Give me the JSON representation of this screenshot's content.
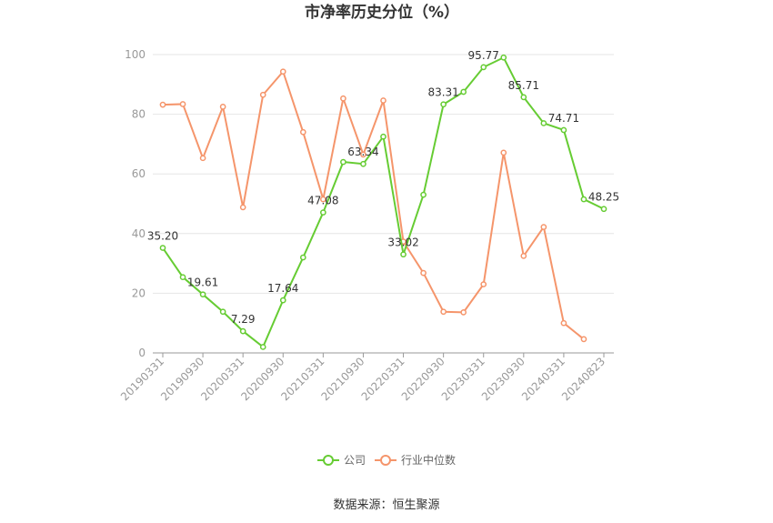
{
  "chart_data": {
    "type": "line",
    "title": "市净率历史分位（%）",
    "source": "数据来源：恒生聚源",
    "ylim": [
      0,
      100
    ],
    "yticks": [
      0,
      20,
      40,
      60,
      80,
      100
    ],
    "grid": true,
    "legend_position": "bottom",
    "x_tick_labels": [
      "20190331",
      "20190930",
      "20200331",
      "20200930",
      "20210331",
      "20210930",
      "20220331",
      "20220930",
      "20230331",
      "20230930",
      "20240331",
      "20240823"
    ],
    "x": [
      "20190331",
      "20190630",
      "20190930",
      "20191231",
      "20200331",
      "20200630",
      "20200930",
      "20201231",
      "20210331",
      "20210630",
      "20210930",
      "20211231",
      "20220331",
      "20220630",
      "20220930",
      "20221231",
      "20230331",
      "20230630",
      "20230930",
      "20231231",
      "20240331",
      "20240630",
      "20240823"
    ],
    "series": [
      {
        "name": "公司",
        "color": "#66cc33",
        "values": [
          35.2,
          25.4,
          19.61,
          13.8,
          7.29,
          2.0,
          17.64,
          32.0,
          47.08,
          64.0,
          63.34,
          72.5,
          33.02,
          53.0,
          83.31,
          87.5,
          95.77,
          99.0,
          85.71,
          77.0,
          74.71,
          51.5,
          48.25
        ],
        "labels": {
          "0": "35.20",
          "2": "19.61",
          "4": "7.29",
          "6": "17.64",
          "8": "47.08",
          "10": "63.34",
          "12": "33.02",
          "14": "83.31",
          "16": "95.77",
          "18": "85.71",
          "20": "74.71",
          "22": "48.25"
        }
      },
      {
        "name": "行业中位数",
        "color": "#f5956b",
        "values": [
          83.2,
          83.4,
          65.3,
          82.5,
          48.8,
          86.5,
          94.3,
          74.0,
          51.5,
          85.3,
          66.5,
          84.6,
          37.3,
          26.8,
          13.8,
          13.6,
          23.0,
          67.1,
          32.5,
          42.2,
          10.0,
          4.6,
          null
        ]
      }
    ]
  }
}
